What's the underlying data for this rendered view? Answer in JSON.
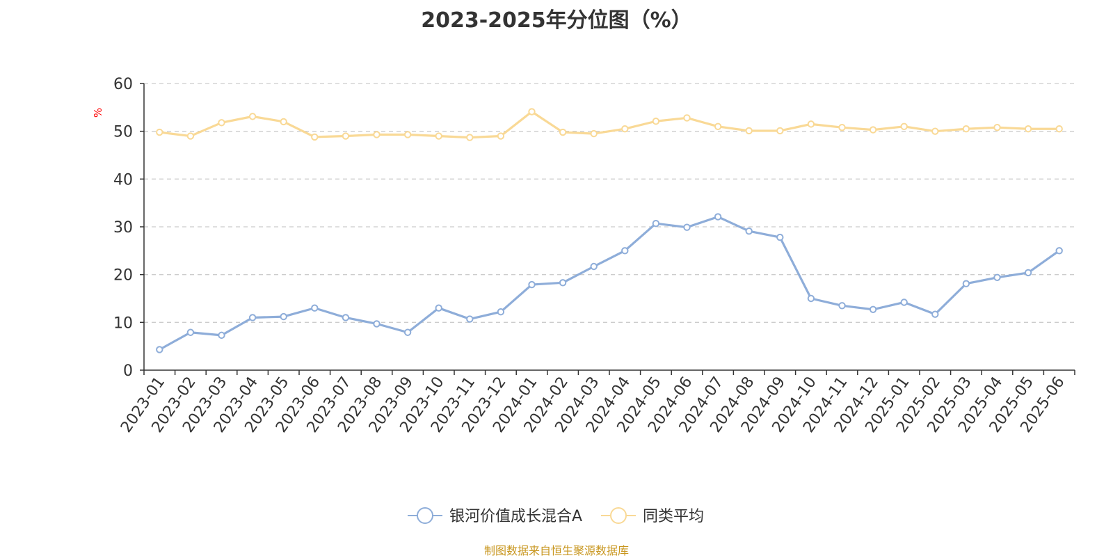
{
  "chart_data": {
    "type": "line",
    "title": "2023-2025年分位图（%）",
    "ylabel": "%",
    "ylim": [
      0,
      60
    ],
    "yticks": [
      0,
      10,
      20,
      30,
      40,
      50,
      60
    ],
    "grid": true,
    "legend_position": "bottom",
    "categories": [
      "2023-01",
      "2023-02",
      "2023-03",
      "2023-04",
      "2023-05",
      "2023-06",
      "2023-07",
      "2023-08",
      "2023-09",
      "2023-10",
      "2023-11",
      "2023-12",
      "2024-01",
      "2024-02",
      "2024-03",
      "2024-04",
      "2024-05",
      "2024-06",
      "2024-07",
      "2024-08",
      "2024-09",
      "2024-10",
      "2024-11",
      "2024-12",
      "2025-01",
      "2025-02",
      "2025-03",
      "2025-04",
      "2025-05",
      "2025-06"
    ],
    "series": [
      {
        "name": "银河价值成长混合A",
        "color": "#8eadd9",
        "values": [
          4.3,
          7.9,
          7.3,
          11.0,
          11.2,
          13.0,
          11.0,
          9.7,
          7.9,
          13.0,
          10.7,
          12.2,
          17.9,
          18.3,
          21.7,
          25.0,
          30.7,
          29.9,
          32.1,
          29.1,
          27.8,
          15.0,
          13.5,
          12.7,
          14.2,
          11.7,
          18.1,
          19.4,
          20.4,
          25.0
        ]
      },
      {
        "name": "同类平均",
        "color": "#f9d996",
        "values": [
          49.8,
          49.0,
          51.8,
          53.1,
          52.0,
          48.8,
          49.0,
          49.3,
          49.3,
          49.0,
          48.7,
          49.0,
          54.1,
          49.8,
          49.5,
          50.5,
          52.1,
          52.8,
          51.0,
          50.1,
          50.1,
          51.5,
          50.8,
          50.3,
          51.0,
          50.0,
          50.5,
          50.8,
          50.5,
          50.5
        ]
      }
    ]
  },
  "source": "制图数据来自恒生聚源数据库",
  "colors": {
    "axis": "#333333",
    "grid": "#cccccc",
    "ylabel": "#ff0000",
    "source": "#c8961e"
  }
}
